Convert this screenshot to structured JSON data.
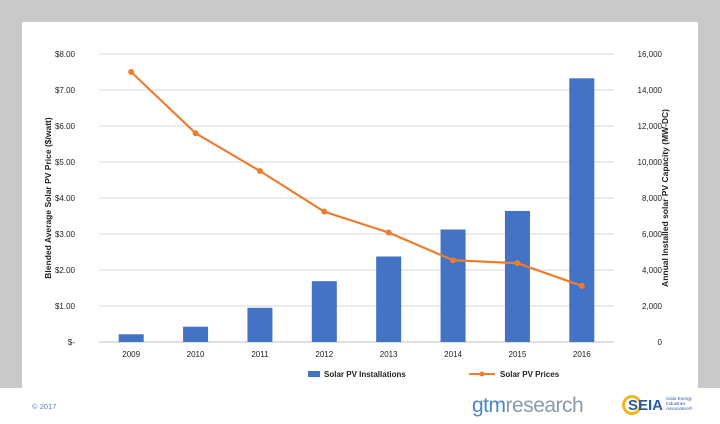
{
  "chart_data": {
    "type": "bar",
    "categories": [
      "2009",
      "2010",
      "2011",
      "2012",
      "2013",
      "2014",
      "2015",
      "2016"
    ],
    "series": [
      {
        "name": "Solar PV Installations",
        "type": "bar",
        "axis": "right",
        "color": "#4472c4",
        "values": [
          430,
          850,
          1900,
          3380,
          4750,
          6250,
          7280,
          14650
        ]
      },
      {
        "name": "Solar PV Prices",
        "type": "line",
        "axis": "left",
        "color": "#ed7d31",
        "values": [
          7.5,
          5.8,
          4.75,
          3.62,
          3.04,
          2.27,
          2.19,
          1.56
        ]
      }
    ],
    "ylabel_left": "Blended Average Solar PV Price ($/watt)",
    "ylabel_right": "Annual Installed solar PV Capacity (MW-DC)",
    "ylim_left": [
      0,
      8
    ],
    "ylim_right": [
      0,
      16000
    ],
    "yticks_left": [
      "$-",
      "$1.00",
      "$2.00",
      "$3.00",
      "$4.00",
      "$5.00",
      "$6.00",
      "$7.00",
      "$8.00"
    ],
    "yticks_right": [
      "0",
      "2,000",
      "4,000",
      "6,000",
      "8,000",
      "10,000",
      "12,000",
      "14,000",
      "16,000"
    ],
    "grid": true,
    "legend_position": "bottom"
  },
  "footer": {
    "copyright": "© 2017",
    "logo_gtm_part1": "gtm",
    "logo_gtm_part2": "research",
    "logo_seia": "SEIA",
    "logo_seia_sub": "Solar Energy Industries Association®"
  }
}
